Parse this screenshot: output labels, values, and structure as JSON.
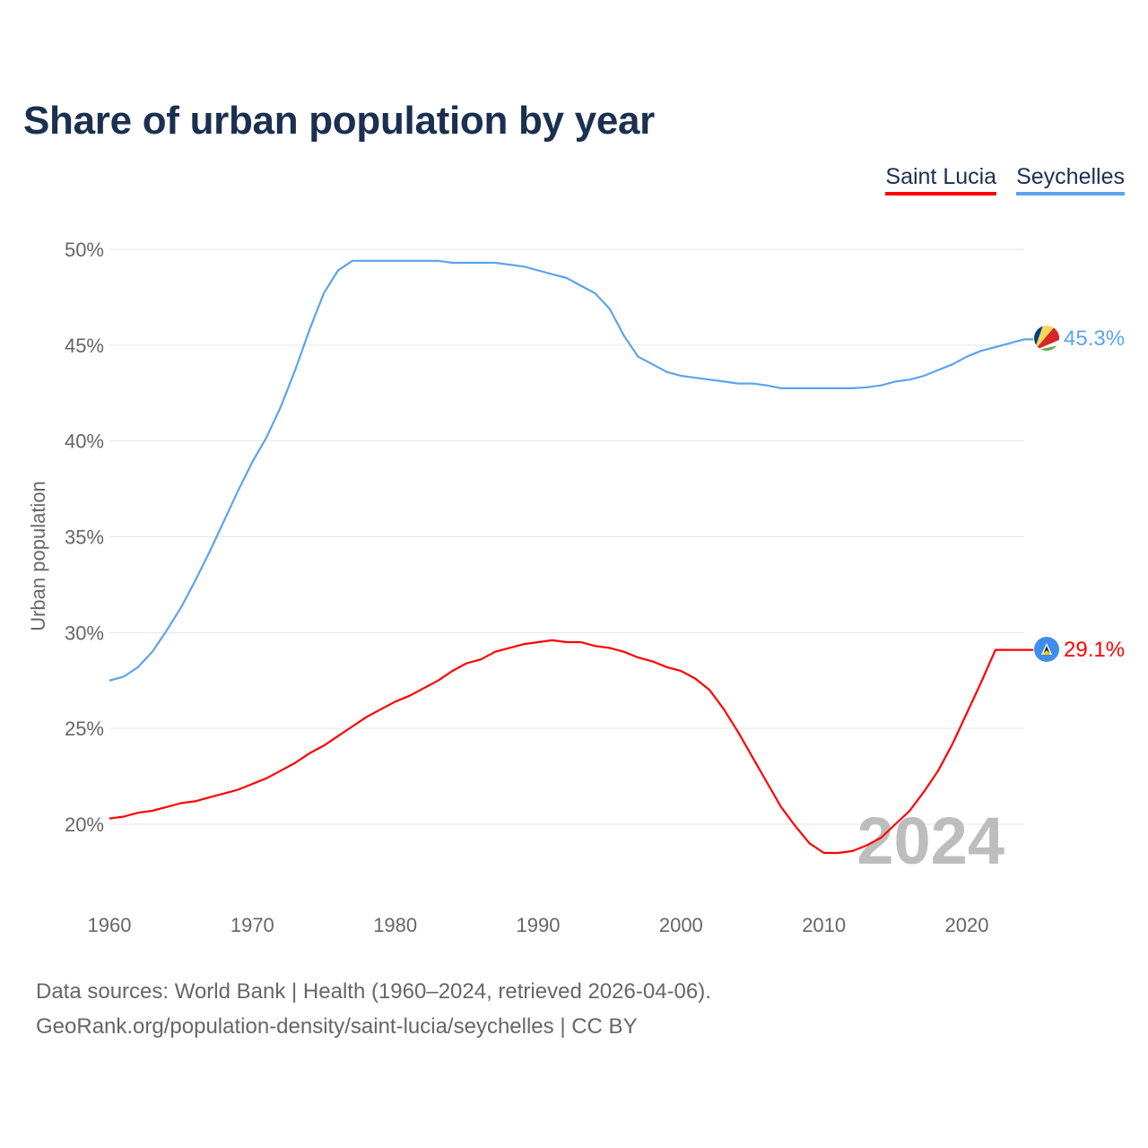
{
  "chart_data": {
    "type": "line",
    "title": "Share of urban population by year",
    "xlabel": "",
    "ylabel": "Urban population",
    "xlim": [
      1960,
      2024
    ],
    "ylim": [
      16,
      51
    ],
    "yticks": [
      20,
      25,
      30,
      35,
      40,
      45,
      50
    ],
    "ytick_labels": [
      "20%",
      "25%",
      "30%",
      "35%",
      "40%",
      "45%",
      "50%"
    ],
    "xticks": [
      1960,
      1970,
      1980,
      1990,
      2000,
      2010,
      2020
    ],
    "xtick_labels": [
      "1960",
      "1970",
      "1980",
      "1990",
      "2000",
      "2010",
      "2020"
    ],
    "grid": true,
    "legend_position": "top-right",
    "watermark_year": "2024",
    "x": [
      1960,
      1961,
      1962,
      1963,
      1964,
      1965,
      1966,
      1967,
      1968,
      1969,
      1970,
      1971,
      1972,
      1973,
      1974,
      1975,
      1976,
      1977,
      1978,
      1979,
      1980,
      1981,
      1982,
      1983,
      1984,
      1985,
      1986,
      1987,
      1988,
      1989,
      1990,
      1991,
      1992,
      1993,
      1994,
      1995,
      1996,
      1997,
      1998,
      1999,
      2000,
      2001,
      2002,
      2003,
      2004,
      2005,
      2006,
      2007,
      2008,
      2009,
      2010,
      2011,
      2012,
      2013,
      2014,
      2015,
      2016,
      2017,
      2018,
      2019,
      2020,
      2021,
      2022,
      2023,
      2024
    ],
    "series": [
      {
        "name": "Saint Lucia",
        "color": "#ff0000",
        "end_label": "29.1%",
        "values": [
          20.3,
          20.4,
          20.6,
          20.7,
          20.9,
          21.1,
          21.2,
          21.4,
          21.6,
          21.8,
          22.1,
          22.4,
          22.8,
          23.2,
          23.7,
          24.1,
          24.6,
          25.1,
          25.6,
          26.0,
          26.4,
          26.7,
          27.1,
          27.5,
          28.0,
          28.4,
          28.6,
          29.0,
          29.2,
          29.4,
          29.5,
          29.6,
          29.5,
          29.5,
          29.3,
          29.2,
          29.0,
          28.7,
          28.5,
          28.2,
          28.0,
          27.6,
          27.0,
          26.0,
          24.8,
          23.5,
          22.2,
          20.9,
          19.9,
          19.0,
          18.5,
          18.5,
          18.6,
          18.9,
          19.3,
          20.0,
          20.7,
          21.7,
          22.8,
          24.2,
          25.8,
          27.4,
          29.1,
          29.1,
          29.1
        ]
      },
      {
        "name": "Seychelles",
        "color": "#5ba4ee",
        "end_label": "45.3%",
        "values": [
          27.5,
          27.7,
          28.2,
          29.0,
          30.1,
          31.3,
          32.7,
          34.2,
          35.8,
          37.4,
          38.9,
          40.2,
          41.8,
          43.7,
          45.8,
          47.7,
          48.9,
          49.4,
          49.4,
          49.4,
          49.4,
          49.4,
          49.4,
          49.4,
          49.3,
          49.3,
          49.3,
          49.3,
          49.2,
          49.1,
          48.9,
          48.7,
          48.5,
          48.1,
          47.7,
          46.9,
          45.5,
          44.4,
          44.0,
          43.6,
          43.4,
          43.3,
          43.2,
          43.1,
          43.0,
          43.0,
          42.9,
          42.75,
          42.75,
          42.75,
          42.75,
          42.75,
          42.75,
          42.8,
          42.9,
          43.1,
          43.2,
          43.4,
          43.7,
          44.0,
          44.4,
          44.7,
          44.9,
          45.1,
          45.3
        ]
      }
    ]
  },
  "footer": {
    "line1": "Data sources: World Bank | Health (1960–2024, retrieved 2026-04-06).",
    "line2": "GeoRank.org/population-density/saint-lucia/seychelles | CC BY"
  }
}
